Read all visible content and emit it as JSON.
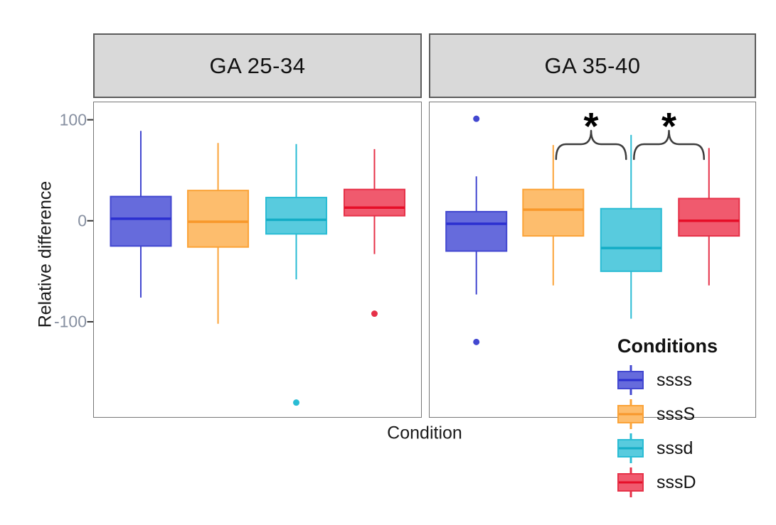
{
  "chart_data": {
    "type": "boxplot",
    "faceted": true,
    "title": "",
    "xlabel": "Condition",
    "ylabel": "Relative difference",
    "grid": "none",
    "y_axis": {
      "range": [
        -195,
        118
      ],
      "ticks": [
        {
          "label": "100",
          "value": 100
        },
        {
          "label": "0",
          "value": 0
        },
        {
          "label": "-100",
          "value": -100
        }
      ]
    },
    "strip_fill": "#d9d9d9",
    "annotation_color": "#3d3d3d",
    "conditions": [
      {
        "name": "ssss",
        "fill": "#666bdc",
        "stroke": "#4247d0",
        "median_color": "#2b2fd0"
      },
      {
        "name": "sssS",
        "fill": "#fdbd6d",
        "stroke": "#fba338",
        "median_color": "#f8982b"
      },
      {
        "name": "sssd",
        "fill": "#58cbde",
        "stroke": "#2abcd4",
        "median_color": "#14adc6"
      },
      {
        "name": "sssD",
        "fill": "#f05a6e",
        "stroke": "#e63148",
        "median_color": "#e60e28"
      }
    ],
    "legend": {
      "title": "Conditions",
      "position": "bottom-right"
    },
    "facets": [
      {
        "label": "GA 25-34",
        "boxes": [
          {
            "condition": "ssss",
            "whisker_low": -76,
            "q1": -25,
            "median": 2,
            "q3": 24,
            "whisker_high": 89,
            "outliers": []
          },
          {
            "condition": "sssS",
            "whisker_low": -102,
            "q1": -26,
            "median": -1,
            "q3": 30,
            "whisker_high": 77,
            "outliers": []
          },
          {
            "condition": "sssd",
            "whisker_low": -58,
            "q1": -13,
            "median": 1,
            "q3": 23,
            "whisker_high": 76,
            "outliers": [
              -180
            ]
          },
          {
            "condition": "sssD",
            "whisker_low": -33,
            "q1": 5,
            "median": 13,
            "q3": 31,
            "whisker_high": 71,
            "outliers": [
              -92
            ]
          }
        ],
        "annotations": []
      },
      {
        "label": "GA 35-40",
        "boxes": [
          {
            "condition": "ssss",
            "whisker_low": -73,
            "q1": -30,
            "median": -3,
            "q3": 9,
            "whisker_high": 44,
            "outliers": [
              101,
              -120
            ]
          },
          {
            "condition": "sssS",
            "whisker_low": -64,
            "q1": -15,
            "median": 11,
            "q3": 31,
            "whisker_high": 75,
            "outliers": []
          },
          {
            "condition": "sssd",
            "whisker_low": -97,
            "q1": -50,
            "median": -27,
            "q3": 12,
            "whisker_high": 85,
            "outliers": []
          },
          {
            "condition": "sssD",
            "whisker_low": -64,
            "q1": -15,
            "median": 0,
            "q3": 22,
            "whisker_high": 72,
            "outliers": []
          }
        ],
        "annotations": [
          {
            "type": "bracket",
            "between": [
              "sssS",
              "sssd"
            ],
            "label": "*"
          },
          {
            "type": "bracket",
            "between": [
              "sssd",
              "sssD"
            ],
            "label": "*"
          }
        ]
      }
    ]
  }
}
